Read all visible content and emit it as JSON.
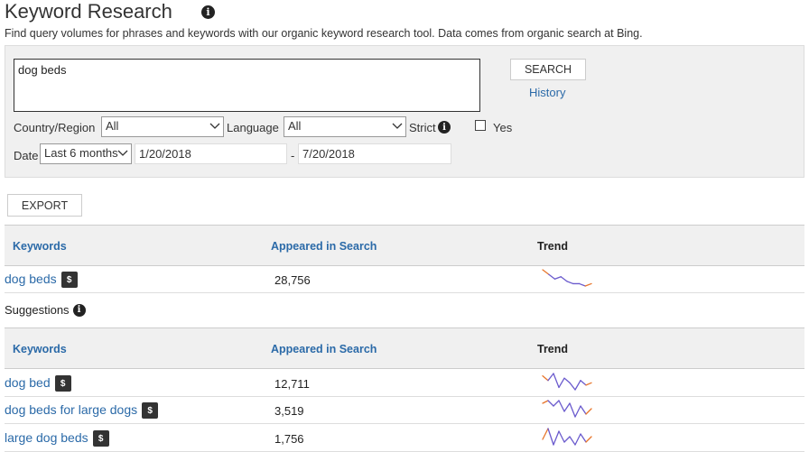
{
  "header": {
    "title": "Keyword Research",
    "subtitle": "Find query volumes for phrases and keywords with our organic keyword research tool. Data comes from organic search at Bing."
  },
  "search": {
    "query": "dog beds",
    "button_label": "SEARCH",
    "history_label": "History"
  },
  "filters": {
    "country_label": "Country/Region",
    "country_value": "All",
    "language_label": "Language",
    "language_value": "All",
    "strict_label": "Strict",
    "yes_label": "Yes",
    "yes_checked": false,
    "date_label": "Date",
    "date_range_value": "Last 6 months",
    "start_date": "1/20/2018",
    "date_separator": "-",
    "end_date": "7/20/2018"
  },
  "export_label": "EXPORT",
  "table_headers": {
    "keywords": "Keywords",
    "appeared": "Appeared in Search",
    "trend": "Trend"
  },
  "main_result": [
    {
      "keyword": "dog beds",
      "badge": "$",
      "count": "28,756",
      "trend": [
        9,
        7,
        5,
        6,
        4,
        3,
        3,
        2,
        3
      ]
    }
  ],
  "suggestions_label": "Suggestions",
  "suggestions": [
    {
      "keyword": "dog bed",
      "badge": "$",
      "count": "12,711",
      "trend": [
        8,
        6,
        9,
        3,
        7,
        5,
        2,
        6,
        4,
        5
      ]
    },
    {
      "keyword": "dog beds for large dogs",
      "badge": "$",
      "count": "3,519",
      "trend": [
        7,
        8,
        6,
        8,
        4,
        7,
        2,
        6,
        3,
        5
      ]
    },
    {
      "keyword": "large dog beds",
      "badge": "$",
      "count": "1,756",
      "trend": [
        4,
        8,
        2,
        7,
        3,
        5,
        2,
        6,
        3,
        5
      ]
    }
  ],
  "colors": {
    "link": "#2b6aa8",
    "trend_main": "#6a5acd",
    "trend_accent": "#e8762b"
  }
}
